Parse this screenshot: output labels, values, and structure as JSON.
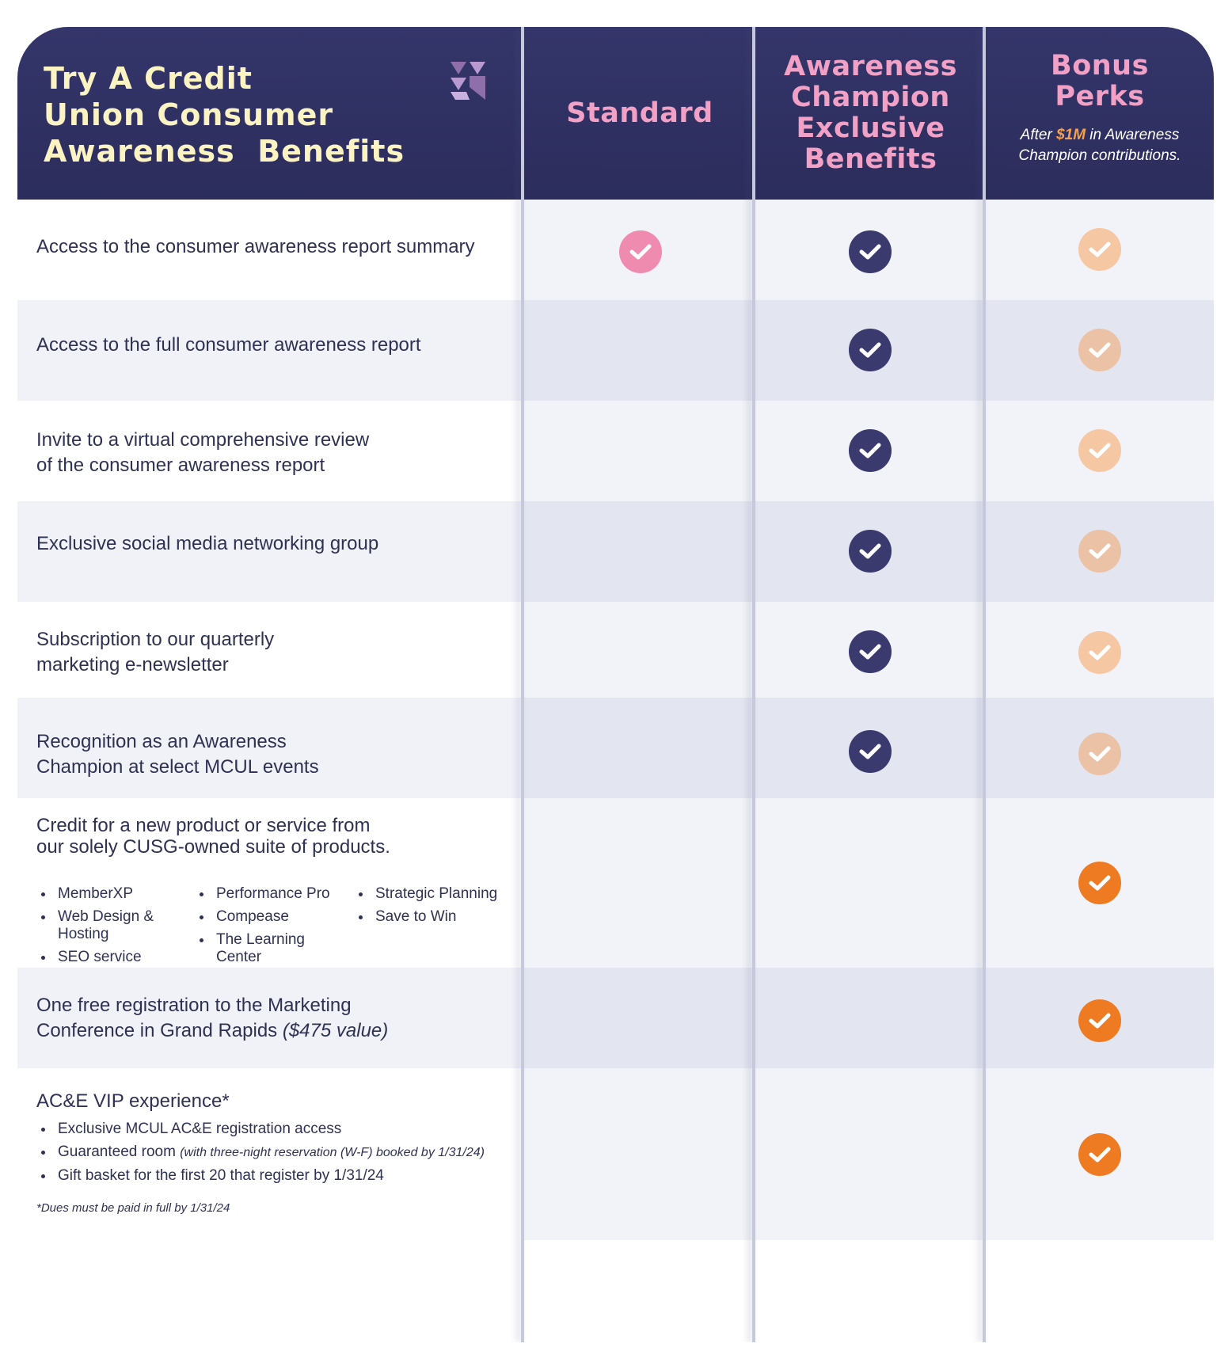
{
  "header": {
    "title_lines": [
      "Try A Credit",
      "Union Consumer",
      "Awareness  Benefits"
    ],
    "columns": [
      {
        "label_lines": [
          "Standard"
        ]
      },
      {
        "label_lines": [
          "Awareness",
          "Champion",
          "Exclusive",
          "Benefits"
        ]
      },
      {
        "label_lines": [
          "Bonus",
          "Perks"
        ],
        "note_prefix": "After ",
        "note_accent": "$1M",
        "note_suffix": " in Awareness",
        "note_line2": "Champion contributions."
      }
    ]
  },
  "colors": {
    "header_bg": "#2c2d5c",
    "title": "#fbf3c2",
    "column_heading": "#f1a0c6",
    "check_standard": "#f08bb0",
    "check_champion": "#3a3a6e",
    "check_bonus_light": "#f6c7a3",
    "check_bonus_dim": "#ecc2a6",
    "check_bonus_strong": "#ee7a22"
  },
  "rows": [
    {
      "lines": [
        "Access to the consumer awareness report summary"
      ],
      "checks": [
        "standard",
        "champion",
        "bonus-light"
      ]
    },
    {
      "lines": [
        "Access to the full consumer awareness report"
      ],
      "checks": [
        "",
        "champion",
        "bonus-dim"
      ]
    },
    {
      "lines": [
        "Invite to a virtual comprehensive review",
        "of the consumer awareness report"
      ],
      "checks": [
        "",
        "champion",
        "bonus-light"
      ]
    },
    {
      "lines": [
        "Exclusive social media networking group"
      ],
      "checks": [
        "",
        "champion",
        "bonus-dim"
      ]
    },
    {
      "lines": [
        "Subscription to our quarterly",
        "marketing e-newsletter"
      ],
      "checks": [
        "",
        "champion",
        "bonus-light"
      ]
    },
    {
      "lines": [
        "Recognition as an Awareness",
        "Champion at select MCUL events"
      ],
      "checks": [
        "",
        "champion",
        "bonus-dim"
      ]
    },
    {
      "lines": [
        "Credit for a new product or service from",
        "our solely CUSG-owned suite of products."
      ],
      "product_columns": [
        [
          "MemberXP",
          "Web Design & Hosting",
          "SEO service"
        ],
        [
          "Performance Pro",
          "Compease",
          "The Learning Center"
        ],
        [
          "Strategic Planning",
          "Save to Win"
        ]
      ],
      "checks": [
        "",
        "",
        "bonus-strong"
      ]
    },
    {
      "lines": [
        "One free registration to the Marketing",
        "Conference in Grand Rapids"
      ],
      "line2_italic": " ($475 value)",
      "checks": [
        "",
        "",
        "bonus-strong"
      ]
    },
    {
      "lines": [
        "AC&E VIP experience*"
      ],
      "vip_bullets": [
        {
          "text": "Exclusive MCUL AC&E registration access",
          "small": ""
        },
        {
          "text": "Guaranteed room ",
          "small": "(with three-night reservation (W-F) booked by 1/31/24)"
        },
        {
          "text": "Gift basket for the first 20 that register by 1/31/24",
          "small": ""
        }
      ],
      "footnote": "*Dues must be paid in full by 1/31/24",
      "checks": [
        "",
        "",
        "bonus-strong"
      ]
    }
  ]
}
